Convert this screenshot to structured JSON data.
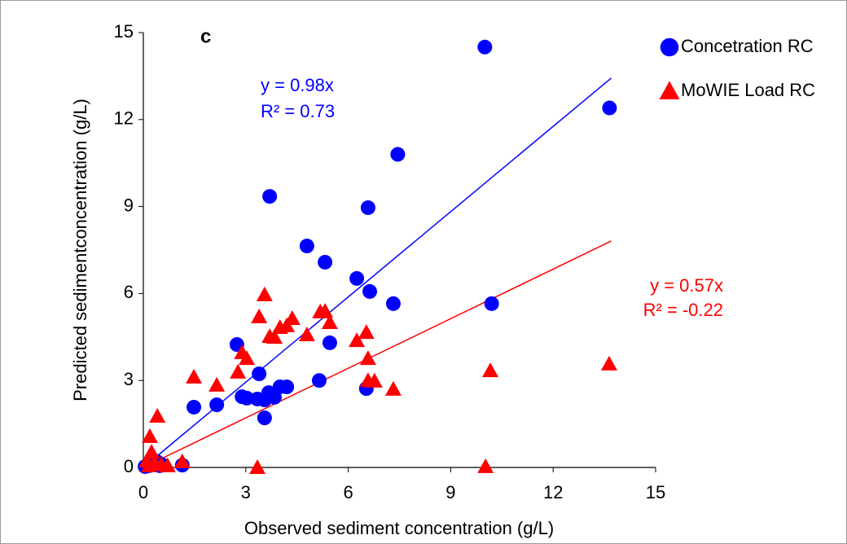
{
  "chart_data": {
    "type": "scatter",
    "title": "c",
    "xlabel": "Observed sediment concentration (g/L)",
    "ylabel": "Predicted sedimentconcentration (g/L)",
    "xlim": [
      0,
      15
    ],
    "ylim": [
      0,
      15
    ],
    "xticks": [
      0,
      3,
      6,
      9,
      12,
      15
    ],
    "yticks": [
      0,
      3,
      6,
      9,
      12,
      15
    ],
    "legend": "top-right",
    "series": [
      {
        "name": "Concetration RC",
        "color": "#0000ff",
        "marker": "circle",
        "x": [
          13.65,
          10.0,
          10.2,
          7.32,
          7.45,
          6.58,
          6.63,
          6.25,
          3.7,
          4.79,
          5.32,
          5.46,
          5.15,
          6.53,
          2.74,
          3.39,
          1.48,
          2.15,
          2.89,
          3.03,
          3.34,
          3.55,
          3.67,
          3.84,
          4.0,
          4.2,
          3.55,
          1.14,
          0.05,
          0.17,
          0.33,
          0.48,
          0.57,
          0.4
        ],
        "values": [
          12.4,
          14.5,
          5.65,
          5.65,
          10.8,
          8.96,
          6.07,
          6.52,
          9.35,
          7.64,
          7.08,
          4.3,
          3.0,
          2.72,
          4.24,
          3.23,
          2.08,
          2.16,
          2.44,
          2.39,
          2.36,
          2.33,
          2.58,
          2.42,
          2.78,
          2.78,
          1.71,
          0.08,
          0.03,
          0.06,
          0.11,
          0.06,
          0.08,
          0.2
        ],
        "trendline": {
          "x": [
            0,
            13.7
          ],
          "values": [
            0,
            13.43
          ],
          "equation": "y = 0.98x",
          "r_squared": "R² = 0.73"
        }
      },
      {
        "name": "MoWIE Load RC",
        "color": "#ff0000",
        "marker": "triangle",
        "x": [
          13.64,
          10.16,
          10.02,
          7.32,
          6.58,
          6.77,
          6.58,
          6.25,
          6.53,
          4.79,
          5.18,
          5.32,
          5.46,
          4.2,
          4.0,
          4.36,
          3.55,
          3.39,
          3.7,
          3.84,
          2.89,
          3.03,
          2.77,
          2.15,
          1.48,
          0.41,
          0.19,
          1.14,
          3.34,
          0.24,
          0.1,
          0.33,
          0.52,
          0.71,
          0.17
        ],
        "values": [
          3.57,
          3.34,
          0.03,
          2.7,
          3.0,
          2.98,
          3.76,
          4.38,
          4.66,
          4.58,
          5.37,
          5.39,
          5.0,
          4.89,
          4.83,
          5.14,
          5.96,
          5.2,
          4.52,
          4.49,
          3.96,
          3.76,
          3.29,
          2.84,
          3.12,
          1.77,
          1.07,
          0.2,
          0.0,
          0.53,
          0.22,
          0.17,
          0.11,
          0.06,
          0.06
        ],
        "trendline": {
          "x": [
            0,
            13.7
          ],
          "values": [
            0,
            7.81
          ],
          "equation": "y = 0.57x",
          "r_squared": "R² = -0.22"
        }
      }
    ]
  }
}
